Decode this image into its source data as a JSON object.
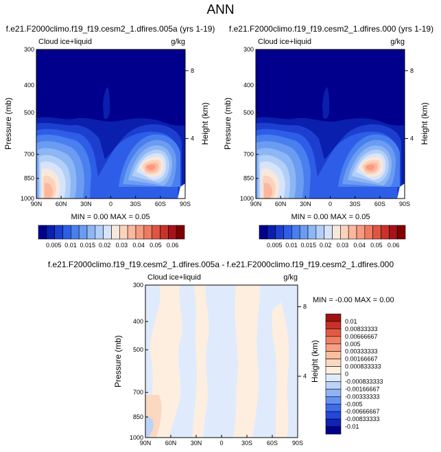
{
  "page": {
    "title": "ANN"
  },
  "colors": {
    "levels_abs": [
      "#00008c",
      "#0a1fae",
      "#1d3fcf",
      "#2e5ee8",
      "#4a7fef",
      "#6b9cf2",
      "#8db6f5",
      "#b3cff8",
      "#d6e4fb",
      "#f7e8dc",
      "#fbd3bd",
      "#fbb89e",
      "#f79a7f",
      "#ee7a61",
      "#de5643",
      "#c9322a",
      "#a5131a",
      "#800000"
    ],
    "levels_diff": [
      "#00008c",
      "#1023b8",
      "#2547dc",
      "#3e6cec",
      "#6592f0",
      "#90b3f4",
      "#bcd3f8",
      "#dfeafc",
      "#fdeee0",
      "#fcd8c0",
      "#fbbfa0",
      "#f7a083",
      "#ef8065",
      "#e25a44",
      "#c9322a",
      "#9e1216"
    ]
  },
  "chart_data": [
    {
      "type": "heatmap",
      "name": "panel-1",
      "title": "f.e21.F2000climo.f19_f19.cesm2_1.dfires.005a (yrs 1-19)",
      "left_string": "Cloud ice+liquid",
      "right_string": "g/kg",
      "ylabel": "Pressure (mb)",
      "y2label": "Height (km)",
      "x_ticks": [
        "90N",
        "60N",
        "30N",
        "0",
        "30S",
        "60S",
        "90S"
      ],
      "y_ticks": [
        "300",
        "400",
        "500",
        "700",
        "850",
        "1000"
      ],
      "y2_ticks": [
        "8",
        "4"
      ],
      "min_max_text": "MIN =  0.00  MAX =  0.05",
      "colorbar_labels": [
        "0.005",
        "0.01",
        "0.015",
        "0.02",
        "0.03",
        "0.04",
        "0.05",
        "0.06"
      ]
    },
    {
      "type": "heatmap",
      "name": "panel-2",
      "title": "f.e21.F2000climo.f19_f19.cesm2_1.dfires.000 (yrs 1-19)",
      "left_string": "Cloud ice+liquid",
      "right_string": "g/kg",
      "ylabel": "Pressure (mb)",
      "y2label": "Height (km)",
      "x_ticks": [
        "90N",
        "60N",
        "30N",
        "0",
        "30S",
        "60S",
        "90S"
      ],
      "y_ticks": [
        "300",
        "400",
        "500",
        "700",
        "850",
        "1000"
      ],
      "y2_ticks": [
        "8",
        "4"
      ],
      "min_max_text": "MIN =  0.00  MAX =  0.05",
      "colorbar_labels": [
        "0.005",
        "0.01",
        "0.015",
        "0.02",
        "0.03",
        "0.04",
        "0.05",
        "0.06"
      ]
    },
    {
      "type": "heatmap",
      "name": "panel-diff",
      "title": "f.e21.F2000climo.f19_f19.cesm2_1.dfires.005a - f.e21.F2000climo.f19_f19.cesm2_1.dfires.000",
      "left_string": "Cloud ice+liquid",
      "right_string": "g/kg",
      "ylabel": "Pressure (mb)",
      "y2label": "Height (km)",
      "x_ticks": [
        "90N",
        "60N",
        "30N",
        "0",
        "30S",
        "60S",
        "90S"
      ],
      "y_ticks": [
        "300",
        "400",
        "500",
        "700",
        "850",
        "1000"
      ],
      "y2_ticks": [
        "8",
        "4"
      ],
      "min_max_text": "MIN = -0.00  MAX =  0.00",
      "colorbar_labels": [
        "0.01",
        "0.00833333",
        "0.00666667",
        "0.005",
        "0.00333333",
        "0.00166667",
        "0.000833333",
        "0",
        "-0.000833333",
        "-0.00166667",
        "-0.00333333",
        "-0.005",
        "-0.00666667",
        "-0.00833333",
        "-0.01"
      ]
    }
  ]
}
